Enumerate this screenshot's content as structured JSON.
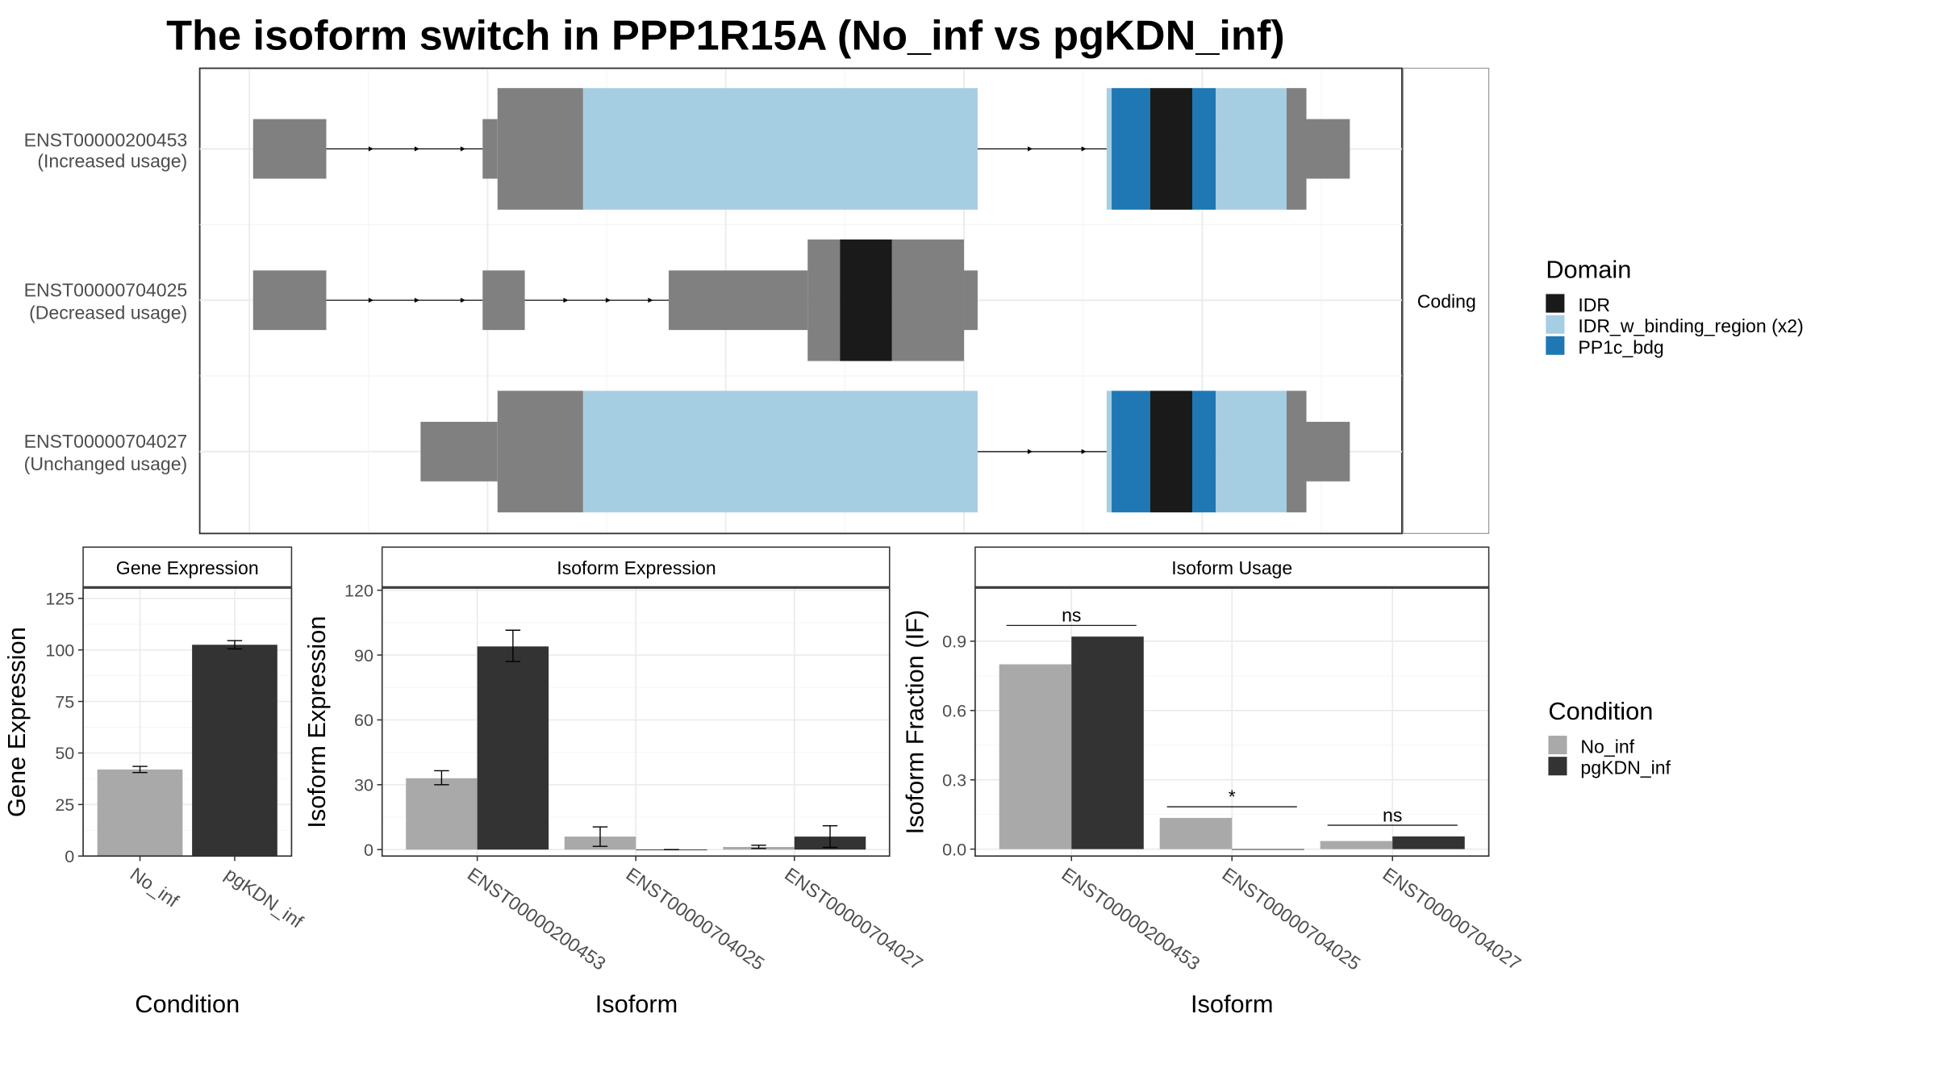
{
  "title": "The isoform switch in PPP1R15A (No_inf vs pgKDN_inf)",
  "colors": {
    "exon": "#808080",
    "IDR": "#1a1a1a",
    "IDR_w_binding_region": "#a6cee3",
    "PP1c_bdg": "#1f78b4",
    "No_inf": "#a9a9a9",
    "pgKDN_inf": "#333333"
  },
  "structure": {
    "strip_label": "Coding",
    "transcripts": [
      {
        "id": "ENST00000200453",
        "note": "(Increased usage)"
      },
      {
        "id": "ENST00000704025",
        "note": "(Decreased usage)"
      },
      {
        "id": "ENST00000704027",
        "note": "(Unchanged usage)"
      }
    ]
  },
  "domain_legend": {
    "title": "Domain",
    "items": [
      {
        "label": "IDR",
        "key": "IDR"
      },
      {
        "label": "IDR_w_binding_region (x2)",
        "key": "IDR_w_binding_region"
      },
      {
        "label": "PP1c_bdg",
        "key": "PP1c_bdg"
      }
    ]
  },
  "condition_legend": {
    "title": "Condition",
    "items": [
      {
        "label": "No_inf",
        "key": "No_inf"
      },
      {
        "label": "pgKDN_inf",
        "key": "pgKDN_inf"
      }
    ]
  },
  "chart_data": [
    {
      "type": "bar",
      "title": "Gene Expression",
      "xlabel": "Condition",
      "ylabel": "Gene Expression",
      "ylim": [
        0,
        130
      ],
      "yticks": [
        0,
        25,
        50,
        75,
        100,
        125
      ],
      "categories": [
        "No_inf",
        "pgKDN_inf"
      ],
      "values": [
        42,
        102.5
      ],
      "errors": [
        [
          40.5,
          43.5
        ],
        [
          100.5,
          104.5
        ]
      ]
    },
    {
      "type": "bar",
      "title": "Isoform Expression",
      "xlabel": "Isoform",
      "ylabel": "Isoform Expression",
      "ylim": [
        -3,
        121
      ],
      "yticks": [
        0,
        30,
        60,
        90,
        120
      ],
      "categories": [
        "ENST00000200453",
        "ENST00000704025",
        "ENST00000704027"
      ],
      "series": [
        {
          "name": "No_inf",
          "values": [
            33,
            6,
            1.2
          ],
          "errors": [
            [
              30,
              36.5
            ],
            [
              1.5,
              10.5
            ],
            [
              0.5,
              2
            ]
          ]
        },
        {
          "name": "pgKDN_inf",
          "values": [
            94,
            0,
            6
          ],
          "errors": [
            [
              87,
              101.5
            ],
            [
              0,
              0
            ],
            [
              1,
              11
            ]
          ]
        }
      ]
    },
    {
      "type": "bar",
      "title": "Isoform Usage",
      "xlabel": "Isoform",
      "ylabel": "Isoform Fraction (IF)",
      "ylim": [
        -0.03,
        1.13
      ],
      "yticks": [
        "0.0",
        "0.3",
        "0.6",
        "0.9"
      ],
      "categories": [
        "ENST00000200453",
        "ENST00000704025",
        "ENST00000704027"
      ],
      "series": [
        {
          "name": "No_inf",
          "values": [
            0.8,
            0.135,
            0.035
          ]
        },
        {
          "name": "pgKDN_inf",
          "values": [
            0.92,
            0.0,
            0.055
          ]
        }
      ],
      "significance": [
        "ns",
        "*",
        "ns"
      ]
    }
  ]
}
